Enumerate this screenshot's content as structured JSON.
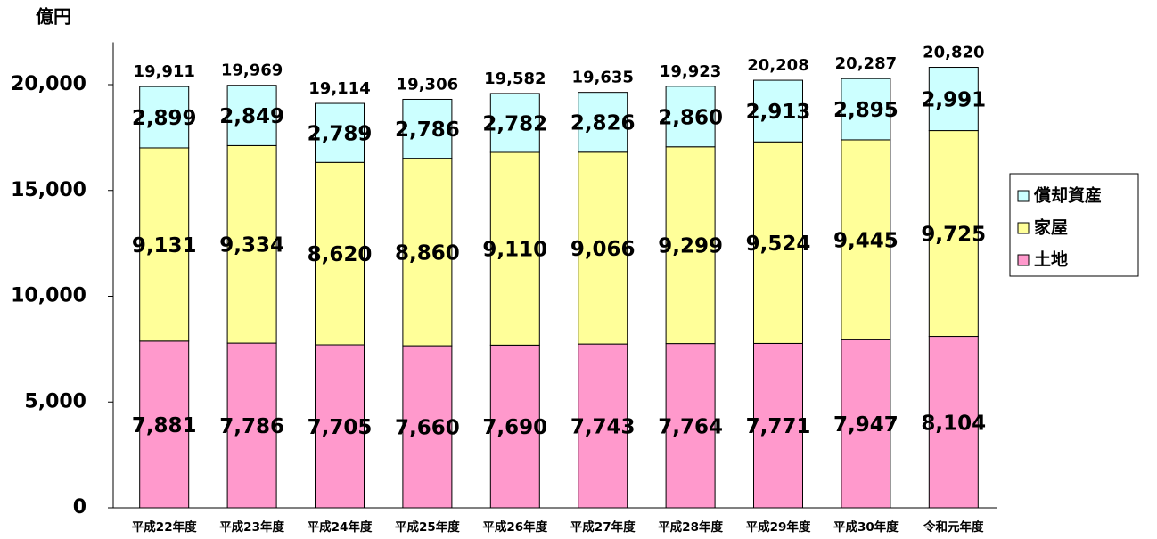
{
  "chart_data": {
    "type": "stacked_bar",
    "y_unit": "億円",
    "categories": [
      "平成22年度",
      "平成23年度",
      "平成24年度",
      "平成25年度",
      "平成26年度",
      "平成27年度",
      "平成28年度",
      "平成29年度",
      "平成30年度",
      "令和元年度"
    ],
    "series": [
      {
        "name": "土地",
        "color": "#ff99cc",
        "values": [
          7881,
          7786,
          7705,
          7660,
          7690,
          7743,
          7764,
          7771,
          7947,
          8104
        ],
        "value_labels": [
          "7,881",
          "7,786",
          "7,705",
          "7,660",
          "7,690",
          "7,743",
          "7,764",
          "7,771",
          "7,947",
          "8,104"
        ]
      },
      {
        "name": "家屋",
        "color": "#ffff99",
        "values": [
          9131,
          9334,
          8620,
          8860,
          9110,
          9066,
          9299,
          9524,
          9445,
          9725
        ],
        "value_labels": [
          "9,131",
          "9,334",
          "8,620",
          "8,860",
          "9,110",
          "9,066",
          "9,299",
          "9,524",
          "9,445",
          "9,725"
        ]
      },
      {
        "name": "償却資産",
        "color": "#ccffff",
        "values": [
          2899,
          2849,
          2789,
          2786,
          2782,
          2826,
          2860,
          2913,
          2895,
          2991
        ],
        "value_labels": [
          "2,899",
          "2,849",
          "2,789",
          "2,786",
          "2,782",
          "2,826",
          "2,860",
          "2,913",
          "2,895",
          "2,991"
        ]
      }
    ],
    "totals": [
      19911,
      19969,
      19114,
      19306,
      19582,
      19635,
      19923,
      20208,
      20287,
      20820
    ],
    "total_labels": [
      "19,911",
      "19,969",
      "19,114",
      "19,306",
      "19,582",
      "19,635",
      "19,923",
      "20,208",
      "20,287",
      "20,820"
    ],
    "ylim": [
      0,
      22000
    ],
    "yticks": [
      0,
      {
        "value": 5000,
        "label": "5,000"
      },
      {
        "value": 10000,
        "label": "10,000"
      },
      {
        "value": 15000,
        "label": "15,000"
      },
      {
        "value": 20000,
        "label": "20,000"
      }
    ],
    "grid": false,
    "legend": "right"
  }
}
